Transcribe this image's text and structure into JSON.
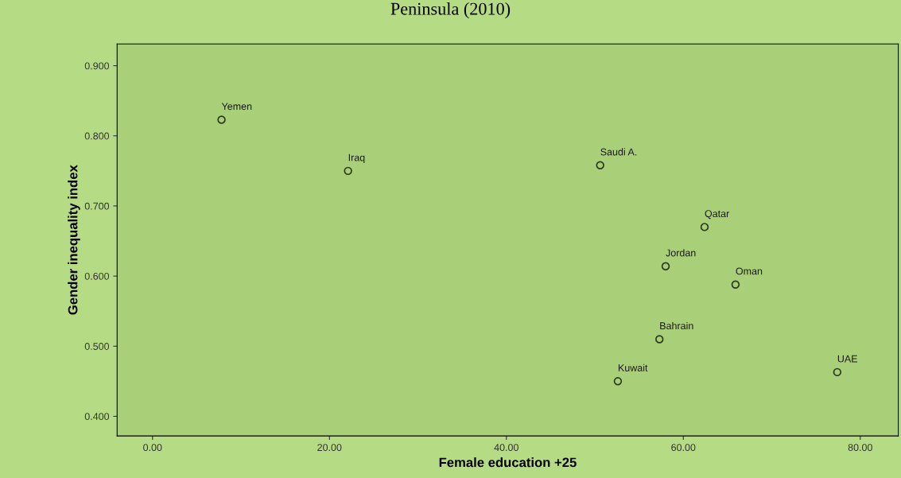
{
  "chart_data": {
    "type": "scatter",
    "title": "Peninsula (2010)",
    "xlabel": "Female education +25",
    "ylabel": "Gender inequality index",
    "x": [
      7.8,
      22.1,
      50.6,
      62.4,
      58.0,
      65.9,
      57.3,
      52.6,
      77.4
    ],
    "series": [
      {
        "color": "#2a3a1a",
        "values": [
          0.823,
          0.75,
          0.758,
          0.67,
          0.614,
          0.588,
          0.51,
          0.45,
          0.463
        ]
      }
    ],
    "marker": "circle",
    "annotations": [
      {
        "text": "Yemen",
        "x": 7.8,
        "y": 0.823
      },
      {
        "text": "Iraq",
        "x": 22.1,
        "y": 0.75
      },
      {
        "text": "Saudi A.",
        "x": 50.6,
        "y": 0.758
      },
      {
        "text": "Qatar",
        "x": 62.4,
        "y": 0.67
      },
      {
        "text": "Jordan",
        "x": 58.0,
        "y": 0.614
      },
      {
        "text": "Oman",
        "x": 65.9,
        "y": 0.588
      },
      {
        "text": "Bahrain",
        "x": 57.3,
        "y": 0.51
      },
      {
        "text": "Kuwait",
        "x": 52.6,
        "y": 0.45
      },
      {
        "text": "UAE",
        "x": 77.4,
        "y": 0.463
      }
    ],
    "xlim": [
      -4.0,
      84.3
    ],
    "ylim": [
      0.372,
      0.931
    ],
    "xticks": [
      {
        "value": 0,
        "label": "0.00"
      },
      {
        "value": 20,
        "label": "20.00"
      },
      {
        "value": 40,
        "label": "40.00"
      },
      {
        "value": 60,
        "label": "60.00"
      },
      {
        "value": 80,
        "label": "80.00"
      }
    ],
    "yticks": [
      {
        "value": 0.4,
        "label": "0.400"
      },
      {
        "value": 0.5,
        "label": "0.500"
      },
      {
        "value": 0.6,
        "label": "0.600"
      },
      {
        "value": 0.7,
        "label": "0.700"
      },
      {
        "value": 0.8,
        "label": "0.800"
      },
      {
        "value": 0.9,
        "label": "0.900"
      }
    ],
    "grid": false,
    "legend": false
  }
}
